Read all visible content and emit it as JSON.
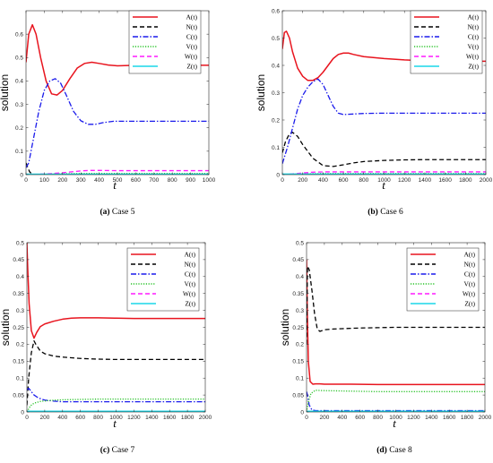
{
  "figure": {
    "panels": [
      {
        "caption_letter": "(a)",
        "caption_text": "Case 5"
      },
      {
        "caption_letter": "(b)",
        "caption_text": "Case 6"
      },
      {
        "caption_letter": "(c)",
        "caption_text": "Case 7"
      },
      {
        "caption_letter": "(d)",
        "caption_text": "Case 8"
      }
    ]
  },
  "chart_data": [
    {
      "type": "line",
      "xlabel": "t",
      "ylabel": "solution",
      "xlim": [
        0,
        1000
      ],
      "ylim": [
        0,
        0.7
      ],
      "xticks": [
        0,
        100,
        200,
        300,
        400,
        500,
        600,
        700,
        800,
        900,
        1000
      ],
      "yticks": [
        0,
        0.1,
        0.2,
        0.3,
        0.4,
        0.5,
        0.6
      ],
      "legend_position": "top-right",
      "grid": false,
      "series": [
        {
          "name": "A(t)",
          "color": "#e8141e",
          "style": "solid",
          "x": [
            0,
            15,
            35,
            55,
            80,
            110,
            140,
            170,
            200,
            240,
            280,
            320,
            360,
            400,
            450,
            500,
            600,
            700,
            800,
            900,
            1000
          ],
          "y": [
            0.48,
            0.6,
            0.64,
            0.6,
            0.5,
            0.4,
            0.345,
            0.34,
            0.36,
            0.41,
            0.455,
            0.475,
            0.48,
            0.475,
            0.468,
            0.465,
            0.467,
            0.467,
            0.467,
            0.467,
            0.467
          ]
        },
        {
          "name": "N(t)",
          "color": "#000000",
          "style": "dashed",
          "x": [
            0,
            10,
            20,
            35,
            1000
          ],
          "y": [
            0.05,
            0.03,
            0.012,
            0.0,
            0.0
          ]
        },
        {
          "name": "C(t)",
          "color": "#1a1aeb",
          "style": "dashdot",
          "x": [
            0,
            15,
            40,
            70,
            100,
            130,
            160,
            190,
            220,
            260,
            300,
            340,
            380,
            420,
            480,
            550,
            650,
            800,
            1000
          ],
          "y": [
            0.03,
            0.05,
            0.15,
            0.27,
            0.36,
            0.4,
            0.41,
            0.39,
            0.34,
            0.27,
            0.23,
            0.215,
            0.215,
            0.222,
            0.228,
            0.228,
            0.228,
            0.228,
            0.228
          ]
        },
        {
          "name": "V(t)",
          "color": "#27c227",
          "style": "dotted",
          "x": [
            0,
            100,
            200,
            300,
            400,
            1000
          ],
          "y": [
            0.0,
            0.002,
            0.004,
            0.005,
            0.005,
            0.005
          ]
        },
        {
          "name": "W(t)",
          "color": "#ff1aff",
          "style": "dashed",
          "x": [
            0,
            50,
            100,
            150,
            200,
            250,
            300,
            350,
            400,
            500,
            700,
            1000
          ],
          "y": [
            0.0,
            0.001,
            0.003,
            0.005,
            0.008,
            0.012,
            0.016,
            0.018,
            0.018,
            0.017,
            0.017,
            0.017
          ]
        },
        {
          "name": "Z(t)",
          "color": "#1ad7e8",
          "style": "solid",
          "x": [
            0,
            1000
          ],
          "y": [
            0.002,
            0.002
          ]
        }
      ]
    },
    {
      "type": "line",
      "xlabel": "t",
      "ylabel": "solution",
      "xlim": [
        0,
        2000
      ],
      "ylim": [
        0,
        0.6
      ],
      "xticks": [
        0,
        200,
        400,
        600,
        800,
        1000,
        1200,
        1400,
        1600,
        1800,
        2000
      ],
      "yticks": [
        0,
        0.1,
        0.2,
        0.3,
        0.4,
        0.5,
        0.6
      ],
      "legend_position": "top-right",
      "grid": false,
      "series": [
        {
          "name": "A(t)",
          "color": "#e8141e",
          "style": "solid",
          "x": [
            0,
            20,
            40,
            70,
            100,
            150,
            200,
            250,
            300,
            350,
            400,
            450,
            500,
            550,
            600,
            650,
            700,
            800,
            1000,
            1200,
            1400,
            1600,
            1800,
            2000
          ],
          "y": [
            0.46,
            0.52,
            0.525,
            0.5,
            0.45,
            0.39,
            0.36,
            0.345,
            0.345,
            0.355,
            0.375,
            0.4,
            0.425,
            0.44,
            0.445,
            0.445,
            0.44,
            0.432,
            0.425,
            0.42,
            0.417,
            0.416,
            0.415,
            0.415
          ]
        },
        {
          "name": "N(t)",
          "color": "#000000",
          "style": "dashed",
          "x": [
            0,
            30,
            70,
            100,
            150,
            200,
            300,
            400,
            500,
            600,
            700,
            800,
            1000,
            1200,
            1400,
            1600,
            1800,
            2000
          ],
          "y": [
            0.08,
            0.12,
            0.15,
            0.155,
            0.14,
            0.11,
            0.06,
            0.033,
            0.03,
            0.036,
            0.043,
            0.048,
            0.052,
            0.054,
            0.055,
            0.055,
            0.055,
            0.055
          ]
        },
        {
          "name": "C(t)",
          "color": "#1a1aeb",
          "style": "dashdot",
          "x": [
            0,
            50,
            100,
            150,
            200,
            250,
            300,
            350,
            400,
            450,
            500,
            550,
            600,
            700,
            800,
            1000,
            1200,
            1400,
            1600,
            1800,
            2000
          ],
          "y": [
            0.04,
            0.1,
            0.17,
            0.24,
            0.29,
            0.32,
            0.34,
            0.35,
            0.33,
            0.29,
            0.25,
            0.225,
            0.22,
            0.222,
            0.224,
            0.225,
            0.225,
            0.225,
            0.225,
            0.225,
            0.225
          ]
        },
        {
          "name": "V(t)",
          "color": "#27c227",
          "style": "dotted",
          "x": [
            0,
            200,
            400,
            600,
            2000
          ],
          "y": [
            0.0,
            0.003,
            0.004,
            0.004,
            0.004
          ]
        },
        {
          "name": "W(t)",
          "color": "#ff1aff",
          "style": "dashed",
          "x": [
            0,
            100,
            200,
            300,
            400,
            600,
            1000,
            2000
          ],
          "y": [
            0.0,
            0.003,
            0.006,
            0.009,
            0.01,
            0.01,
            0.01,
            0.01
          ]
        },
        {
          "name": "Z(t)",
          "color": "#1ad7e8",
          "style": "solid",
          "x": [
            0,
            2000
          ],
          "y": [
            0.002,
            0.002
          ]
        }
      ]
    },
    {
      "type": "line",
      "xlabel": "t",
      "ylabel": "solution",
      "xlim": [
        0,
        2000
      ],
      "ylim": [
        0,
        0.5
      ],
      "xticks": [
        0,
        200,
        400,
        600,
        800,
        1000,
        1200,
        1400,
        1600,
        1800,
        2000
      ],
      "yticks": [
        0,
        0.05,
        0.1,
        0.15,
        0.2,
        0.25,
        0.3,
        0.35,
        0.4,
        0.45,
        0.5
      ],
      "legend_position": "top-right",
      "grid": false,
      "series": [
        {
          "name": "A(t)",
          "color": "#e8141e",
          "style": "solid",
          "x": [
            0,
            10,
            25,
            50,
            80,
            110,
            150,
            200,
            300,
            400,
            500,
            600,
            800,
            1000,
            1200,
            1600,
            2000
          ],
          "y": [
            0.5,
            0.42,
            0.32,
            0.24,
            0.218,
            0.235,
            0.252,
            0.26,
            0.268,
            0.274,
            0.277,
            0.278,
            0.278,
            0.277,
            0.276,
            0.276,
            0.276
          ]
        },
        {
          "name": "N(t)",
          "color": "#000000",
          "style": "dashed",
          "x": [
            0,
            20,
            50,
            80,
            100,
            150,
            200,
            300,
            400,
            600,
            800,
            1000,
            1200,
            1600,
            2000
          ],
          "y": [
            0.02,
            0.1,
            0.175,
            0.21,
            0.2,
            0.18,
            0.172,
            0.165,
            0.162,
            0.158,
            0.156,
            0.155,
            0.155,
            0.155,
            0.155
          ]
        },
        {
          "name": "C(t)",
          "color": "#1a1aeb",
          "style": "dashdot",
          "x": [
            0,
            20,
            50,
            80,
            120,
            160,
            200,
            300,
            400,
            600,
            1000,
            1600,
            2000
          ],
          "y": [
            0.065,
            0.07,
            0.06,
            0.05,
            0.043,
            0.038,
            0.035,
            0.032,
            0.03,
            0.03,
            0.03,
            0.03,
            0.03
          ]
        },
        {
          "name": "V(t)",
          "color": "#27c227",
          "style": "dotted",
          "x": [
            0,
            40,
            80,
            150,
            250,
            400,
            600,
            800,
            1000,
            1600,
            2000
          ],
          "y": [
            0.0,
            0.018,
            0.026,
            0.031,
            0.034,
            0.036,
            0.037,
            0.038,
            0.038,
            0.038,
            0.038
          ]
        },
        {
          "name": "W(t)",
          "color": "#ff1aff",
          "style": "dashed",
          "x": [
            0,
            2000
          ],
          "y": [
            0.001,
            0.001
          ]
        },
        {
          "name": "Z(t)",
          "color": "#1ad7e8",
          "style": "solid",
          "x": [
            0,
            2000
          ],
          "y": [
            0.002,
            0.002
          ]
        }
      ]
    },
    {
      "type": "line",
      "xlabel": "t",
      "ylabel": "solution",
      "xlim": [
        0,
        2000
      ],
      "ylim": [
        0,
        0.5
      ],
      "xticks": [
        0,
        200,
        400,
        600,
        800,
        1000,
        1200,
        1400,
        1600,
        1800,
        2000
      ],
      "yticks": [
        0,
        0.05,
        0.1,
        0.15,
        0.2,
        0.25,
        0.3,
        0.35,
        0.4,
        0.45,
        0.5
      ],
      "legend_position": "top-right",
      "grid": false,
      "series": [
        {
          "name": "A(t)",
          "color": "#e8141e",
          "style": "solid",
          "x": [
            0,
            8,
            20,
            40,
            70,
            100,
            150,
            200,
            300,
            500,
            800,
            1000,
            1500,
            2000
          ],
          "y": [
            0.45,
            0.3,
            0.15,
            0.09,
            0.082,
            0.083,
            0.083,
            0.082,
            0.082,
            0.082,
            0.081,
            0.081,
            0.081,
            0.081
          ]
        },
        {
          "name": "N(t)",
          "color": "#000000",
          "style": "dashed",
          "x": [
            0,
            10,
            30,
            60,
            90,
            120,
            150,
            200,
            300,
            400,
            600,
            800,
            1000,
            1500,
            2000
          ],
          "y": [
            0.2,
            0.43,
            0.42,
            0.36,
            0.29,
            0.245,
            0.238,
            0.243,
            0.245,
            0.246,
            0.248,
            0.249,
            0.25,
            0.25,
            0.25
          ]
        },
        {
          "name": "C(t)",
          "color": "#1a1aeb",
          "style": "dashdot",
          "x": [
            0,
            10,
            30,
            60,
            100,
            2000
          ],
          "y": [
            0.06,
            0.05,
            0.02,
            0.006,
            0.004,
            0.004
          ]
        },
        {
          "name": "V(t)",
          "color": "#27c227",
          "style": "dotted",
          "x": [
            0,
            20,
            50,
            100,
            200,
            400,
            600,
            800,
            1000,
            1500,
            2000
          ],
          "y": [
            0.0,
            0.03,
            0.055,
            0.064,
            0.063,
            0.062,
            0.061,
            0.06,
            0.06,
            0.06,
            0.06
          ]
        },
        {
          "name": "W(t)",
          "color": "#ff1aff",
          "style": "dashed",
          "x": [
            0,
            2000
          ],
          "y": [
            0.001,
            0.001
          ]
        },
        {
          "name": "Z(t)",
          "color": "#1ad7e8",
          "style": "solid",
          "x": [
            0,
            2000
          ],
          "y": [
            0.002,
            0.002
          ]
        }
      ]
    }
  ]
}
